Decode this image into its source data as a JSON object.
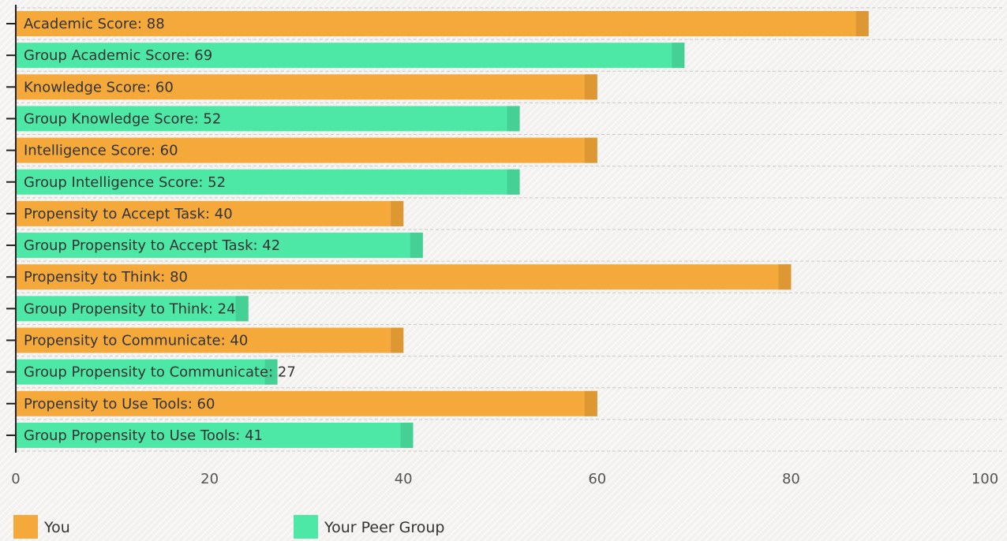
{
  "chart_data": {
    "type": "bar",
    "orientation": "horizontal",
    "categories": [
      "Academic Score: 88",
      "Group Academic Score: 69",
      "Knowledge Score: 60",
      "Group Knowledge Score: 52",
      "Intelligence Score: 60",
      "Group Intelligence Score: 52",
      "Propensity to Accept Task: 40",
      "Group Propensity to Accept Task: 42",
      "Propensity to Think: 80",
      "Group Propensity to Think: 24",
      "Propensity to Communicate: 40",
      "Group Propensity to Communicate: 27",
      "Propensity to Use Tools: 60",
      "Group Propensity to Use Tools: 41"
    ],
    "values": [
      88,
      69,
      60,
      52,
      60,
      52,
      40,
      42,
      80,
      24,
      40,
      27,
      60,
      41
    ],
    "series_of_bar": [
      "You",
      "Your Peer Group",
      "You",
      "Your Peer Group",
      "You",
      "Your Peer Group",
      "You",
      "Your Peer Group",
      "You",
      "Your Peer Group",
      "You",
      "Your Peer Group",
      "You",
      "Your Peer Group"
    ],
    "xlim": [
      0,
      100
    ],
    "x_ticks": [
      0,
      20,
      40,
      60,
      80,
      100
    ],
    "x_tick_labels": [
      "0",
      "20",
      "40",
      "60",
      "80",
      "100"
    ],
    "grid": true,
    "legend": {
      "placement": "bottom-left",
      "entries": [
        {
          "label": "You",
          "color": "#f5a93a"
        },
        {
          "label": "Your Peer Group",
          "color": "#4de8a6"
        }
      ]
    },
    "colors": {
      "You": "#f5a93a",
      "Your Peer Group": "#4de8a6"
    }
  }
}
